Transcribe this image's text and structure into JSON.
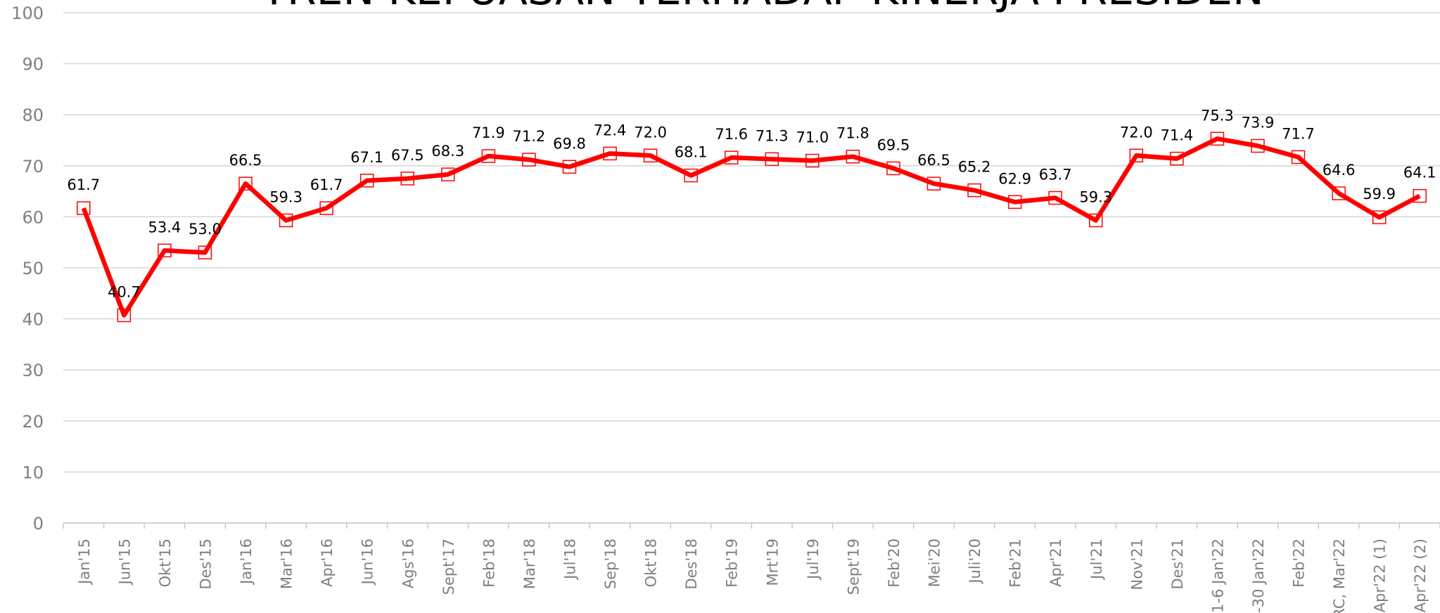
{
  "chart_data": {
    "type": "line",
    "title": "TREN KEPUASAN TERHADAP KINERJA PRESIDEN",
    "categories": [
      "Jan'15",
      "Jun'15",
      "Okt'15",
      "Des'15",
      "Jan'16",
      "Mar'16",
      "Apr'16",
      "Jun'16",
      "Ags'16",
      "Sept'17",
      "Feb'18",
      "Mar'18",
      "Jul'18",
      "Sep'18",
      "Okt'18",
      "Des'18",
      "Feb'19",
      "Mrt'19",
      "Jul'19",
      "Sept'19",
      "Feb'20",
      "Mei'20",
      "Juli'20",
      "Feb'21",
      "Apr'21",
      "Jul'21",
      "Nov'21",
      "Des'21",
      "1-6 Jan'22",
      "-30 Jan'22",
      "Feb'22",
      "RC, Mar'22",
      "Apr'22 (1)",
      "Apr'22 (2)"
    ],
    "series": [
      {
        "color": "#ff0000",
        "values": [
          61.7,
          40.7,
          53.4,
          53.0,
          66.5,
          59.3,
          61.7,
          67.1,
          67.5,
          68.3,
          71.9,
          71.2,
          69.8,
          72.4,
          72.0,
          68.1,
          71.6,
          71.3,
          71.0,
          71.8,
          69.5,
          66.5,
          65.2,
          62.9,
          63.7,
          59.3,
          72.0,
          71.4,
          75.3,
          73.9,
          71.7,
          64.6,
          59.9,
          64.1
        ],
        "value_labels": [
          "61.7",
          "40.7",
          "53.4",
          "53.0",
          "66.5",
          "59.3",
          "61.7",
          "67.1",
          "67.5",
          "68.3",
          "71.9",
          "71.2",
          "69.8",
          "72.4",
          "72.0",
          "68.1",
          "71.6",
          "71.3",
          "71.0",
          "71.8",
          "69.5",
          "66.5",
          "65.2",
          "62.9",
          "63.7",
          "59.3",
          "72.0",
          "71.4",
          "75.3",
          "73.9",
          "71.7",
          "64.6",
          "59.9",
          "64.1"
        ]
      }
    ],
    "ylim": [
      0,
      100
    ],
    "yticks": [
      0,
      10,
      20,
      30,
      40,
      50,
      60,
      70,
      80,
      90,
      100
    ],
    "grid": true
  }
}
